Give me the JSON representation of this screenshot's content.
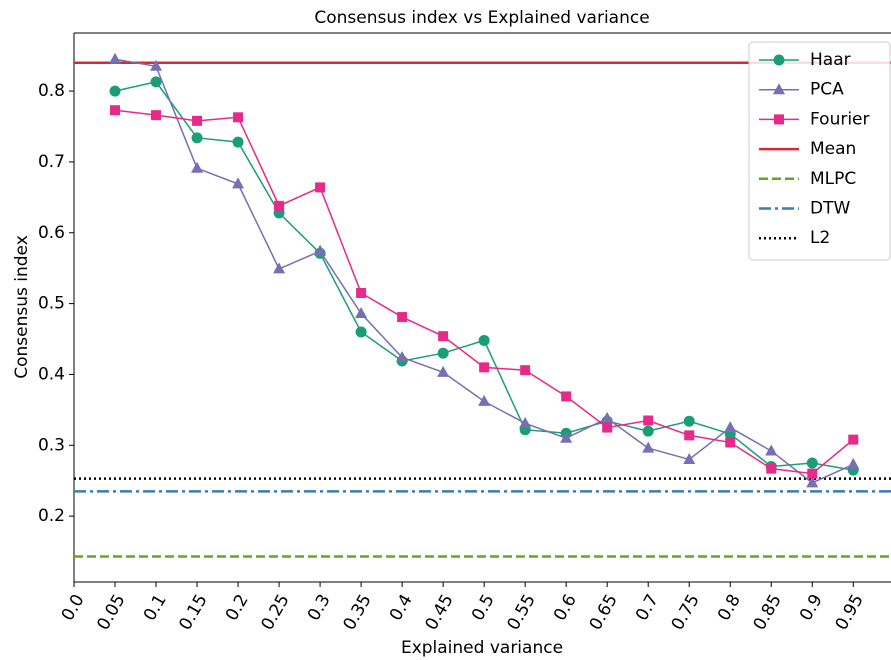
{
  "chart_data": {
    "type": "line",
    "title": "Consensus index vs Explained variance",
    "xlabel": "Explained variance",
    "ylabel": "Consensus index",
    "x": [
      0.05,
      0.1,
      0.15,
      0.2,
      0.25,
      0.3,
      0.35,
      0.4,
      0.45,
      0.5,
      0.55,
      0.6,
      0.65,
      0.7,
      0.75,
      0.8,
      0.85,
      0.9,
      0.95
    ],
    "series": [
      {
        "name": "Haar",
        "color": "#1b9e77",
        "marker": "circle",
        "values": [
          0.8,
          0.813,
          0.734,
          0.728,
          0.628,
          0.571,
          0.46,
          0.419,
          0.43,
          0.448,
          0.322,
          0.317,
          0.334,
          0.32,
          0.334,
          0.316,
          0.27,
          0.275,
          0.265
        ]
      },
      {
        "name": "PCA",
        "color": "#7570b3",
        "marker": "triangle",
        "values": [
          0.845,
          0.835,
          0.691,
          0.669,
          0.549,
          0.574,
          0.486,
          0.424,
          0.403,
          0.362,
          0.331,
          0.31,
          0.338,
          0.296,
          0.28,
          0.325,
          0.292,
          0.247,
          0.273
        ]
      },
      {
        "name": "Fourier",
        "color": "#e7298a",
        "marker": "square",
        "values": [
          0.773,
          0.766,
          0.758,
          0.763,
          0.638,
          0.664,
          0.515,
          0.481,
          0.454,
          0.41,
          0.406,
          0.369,
          0.325,
          0.335,
          0.314,
          0.304,
          0.267,
          0.26,
          0.308
        ]
      }
    ],
    "hlines": [
      {
        "name": "Mean",
        "color": "#d62839",
        "style": "solid",
        "value": 0.84
      },
      {
        "name": "MLPC",
        "color": "#66a61e",
        "style": "dashed",
        "value": 0.143
      },
      {
        "name": "DTW",
        "color": "#3a7db5",
        "style": "dashdot",
        "value": 0.235
      },
      {
        "name": "L2",
        "color": "#000000",
        "style": "dotted",
        "value": 0.253
      }
    ],
    "xlim": [
      0,
      0.996
    ],
    "ylim": [
      0.107,
      0.882
    ],
    "xticks": [
      {
        "value": 0,
        "label": "0.0"
      },
      0.05,
      0.1,
      0.15,
      0.2,
      0.25,
      0.3,
      0.35,
      0.4,
      0.45,
      0.5,
      0.55,
      0.6,
      0.65,
      0.7,
      0.75,
      0.8,
      0.85,
      0.9,
      0.95
    ],
    "yticks": [
      0.2,
      0.3,
      0.4,
      0.5,
      0.6,
      0.7,
      0.8
    ],
    "legend": "upper right",
    "grid": false
  }
}
